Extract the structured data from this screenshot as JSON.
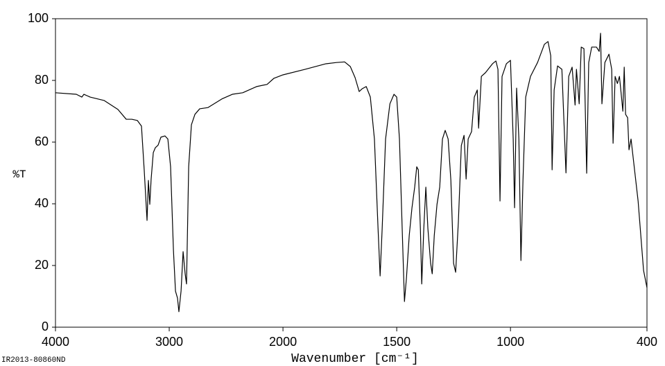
{
  "chart_data": {
    "type": "line",
    "xlabel": "Wavenumber [cm⁻¹]",
    "ylabel": "%T",
    "footnote": "IR2013-80860ND",
    "xlim": [
      4000,
      400
    ],
    "x_scale_break": {
      "at": 2000,
      "factor": 2
    },
    "xticks": [
      4000,
      3000,
      2000,
      1500,
      1000,
      400
    ],
    "ylim": [
      0,
      100
    ],
    "yticks": [
      0,
      20,
      40,
      60,
      80,
      100
    ],
    "grid": false,
    "series": [
      {
        "name": null,
        "color": "#000000",
        "x": [
          4000,
          3817,
          3768,
          3750,
          3695,
          3573,
          3451,
          3378,
          3329,
          3280,
          3244,
          3220,
          3195,
          3183,
          3171,
          3159,
          3140,
          3122,
          3098,
          3073,
          3037,
          3012,
          2988,
          2963,
          2945,
          2927,
          2915,
          2896,
          2878,
          2860,
          2848,
          2829,
          2805,
          2774,
          2732,
          2659,
          2537,
          2445,
          2354,
          2232,
          2140,
          2079,
          2000,
          1902,
          1811,
          1765,
          1729,
          1704,
          1683,
          1665,
          1652,
          1634,
          1616,
          1598,
          1582,
          1573,
          1564,
          1549,
          1530,
          1512,
          1500,
          1488,
          1476,
          1466,
          1457,
          1445,
          1433,
          1421,
          1412,
          1405,
          1396,
          1390,
          1381,
          1372,
          1363,
          1351,
          1344,
          1335,
          1323,
          1311,
          1299,
          1287,
          1274,
          1262,
          1250,
          1241,
          1229,
          1216,
          1204,
          1195,
          1186,
          1171,
          1159,
          1146,
          1140,
          1128,
          1110,
          1079,
          1064,
          1055,
          1046,
          1037,
          1018,
          1000,
          988,
          982,
          973,
          963,
          954,
          945,
          933,
          912,
          881,
          851,
          835,
          823,
          817,
          808,
          793,
          774,
          756,
          744,
          729,
          716,
          710,
          698,
          689,
          677,
          665,
          656,
          643,
          622,
          610,
          604,
          598,
          585,
          567,
          555,
          549,
          540,
          530,
          521,
          515,
          506,
          500,
          494,
          485,
          479,
          470,
          439,
          415,
          400
        ],
        "values": [
          76,
          75.5,
          74.6,
          75.5,
          74.6,
          73.5,
          70.6,
          67.4,
          67.4,
          67,
          65.2,
          51,
          34.6,
          47.6,
          39.8,
          48,
          56.6,
          58.2,
          59,
          61.6,
          62,
          61,
          52,
          25,
          11.7,
          9.4,
          5,
          11.7,
          24.5,
          17.3,
          14,
          52,
          65.6,
          69,
          70.8,
          71.2,
          74,
          75.5,
          76,
          78,
          78.7,
          80.7,
          81.8,
          83.6,
          85.4,
          85.8,
          86,
          84.5,
          80.9,
          76.4,
          77.3,
          78,
          74.6,
          61,
          31.9,
          16.6,
          31.9,
          61,
          72.4,
          75.5,
          74.6,
          61,
          32,
          8.3,
          16.2,
          29.7,
          38.7,
          45.4,
          52,
          51,
          32,
          14,
          32,
          45.4,
          32,
          20.7,
          17.3,
          29.7,
          39.8,
          45.4,
          61,
          63.8,
          61,
          47.6,
          20.7,
          17.8,
          34.2,
          58.9,
          62.2,
          48,
          61,
          63.4,
          74.6,
          76.9,
          64.5,
          81.3,
          82.5,
          85.4,
          86.3,
          83.6,
          40.9,
          81.3,
          85.4,
          86.5,
          61,
          38.7,
          77.5,
          61,
          21.6,
          47.6,
          74.6,
          81.3,
          85.8,
          91.7,
          92.6,
          88,
          51,
          76.9,
          84.7,
          83.6,
          50,
          81.3,
          84.3,
          72,
          83.6,
          72.4,
          90.8,
          90.3,
          49.9,
          85.8,
          90.8,
          90.8,
          89.4,
          95.3,
          72.4,
          85.8,
          88.5,
          83.6,
          59.6,
          81.3,
          79,
          81.3,
          76.9,
          70,
          84.3,
          69,
          67.9,
          57.5,
          61,
          40.9,
          18.4,
          12.8
        ]
      }
    ]
  }
}
